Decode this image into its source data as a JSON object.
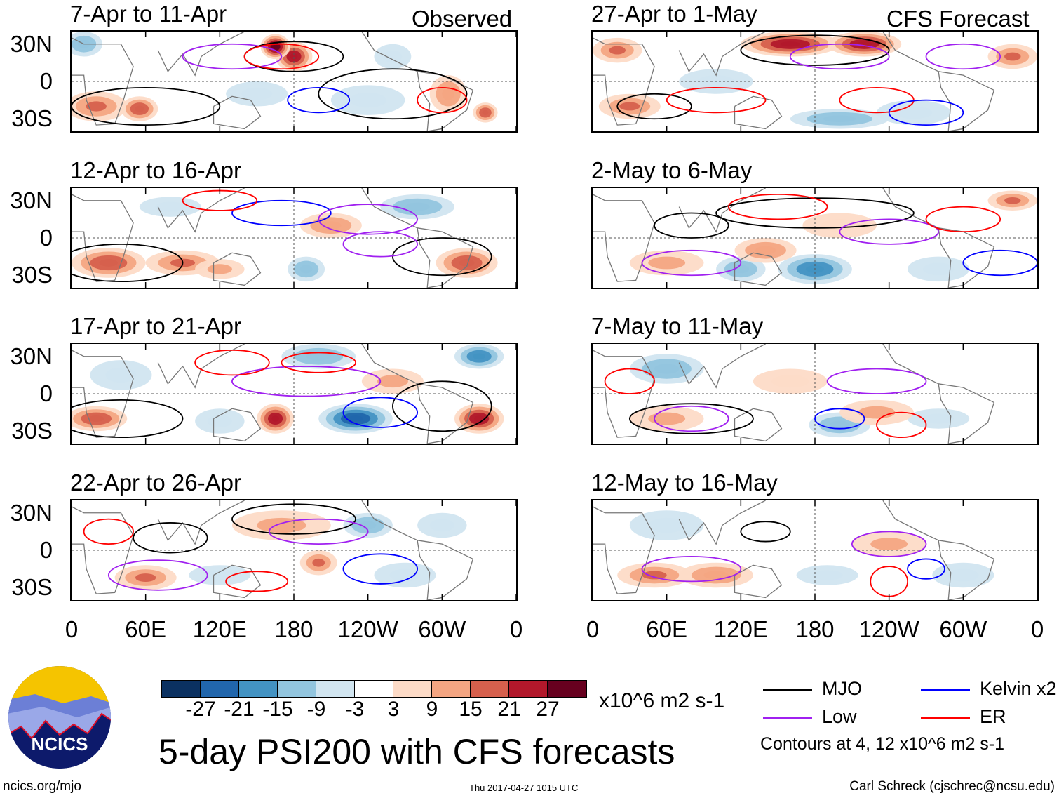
{
  "title": "5-day PSI200 with CFS forecasts",
  "column_labels": {
    "observed": "Observed",
    "forecast": "CFS Forecast"
  },
  "lat_labels": [
    "30N",
    "0",
    "30S"
  ],
  "lon_labels": [
    "0",
    "60E",
    "120E",
    "180",
    "120W",
    "60W",
    "0"
  ],
  "colorbar": {
    "ticks": [
      "-27",
      "-21",
      "-15",
      "-9",
      "-3",
      "3",
      "9",
      "15",
      "21",
      "27"
    ],
    "colors": [
      "#0b3161",
      "#2166ac",
      "#4393c3",
      "#92c5de",
      "#d1e5f0",
      "#ffffff",
      "#fddbc7",
      "#f4a582",
      "#d6604d",
      "#b2182b",
      "#67001f"
    ],
    "units": "x10^6 m2 s-1"
  },
  "legend": {
    "items": [
      {
        "label": "MJO",
        "color": "#000000"
      },
      {
        "label": "Kelvin x2",
        "color": "#0000ff"
      },
      {
        "label": "Low",
        "color": "#a020f0"
      },
      {
        "label": "ER",
        "color": "#ff0000"
      }
    ],
    "contours_note": "Contours at 4, 12 x10^6 m2 s-1"
  },
  "footer": {
    "url": "ncics.org/mjo",
    "timestamp": "Thu 2017-04-27 1015 UTC",
    "author": "Carl Schreck (cjschrec@ncsu.edu)"
  },
  "logo_text": "NCICS",
  "chart_data": {
    "type": "heatmap",
    "variable": "PSI200 anomaly",
    "lon_range": [
      0,
      360
    ],
    "lat_range": [
      -40,
      40
    ],
    "panels": [
      {
        "title": "7-Apr to 11-Apr",
        "kind": "observed",
        "anomalies": [
          [
            180,
            20,
            15,
            12,
            25
          ],
          [
            165,
            28,
            12,
            10,
            30
          ],
          [
            20,
            -20,
            25,
            12,
            15
          ],
          [
            55,
            -22,
            15,
            10,
            18
          ],
          [
            305,
            -10,
            15,
            15,
            12
          ],
          [
            150,
            -10,
            25,
            10,
            -9
          ],
          [
            240,
            -15,
            30,
            12,
            -6
          ],
          [
            260,
            20,
            15,
            10,
            -9
          ],
          [
            10,
            30,
            15,
            10,
            -12
          ],
          [
            335,
            -25,
            10,
            8,
            20
          ]
        ],
        "contours": [
          [
            180,
            20,
            40,
            12,
            "mjo"
          ],
          [
            60,
            -20,
            60,
            15,
            "mjo"
          ],
          [
            260,
            -10,
            60,
            20,
            "mjo"
          ],
          [
            130,
            20,
            40,
            10,
            "low"
          ],
          [
            200,
            -15,
            25,
            10,
            "kelvin"
          ],
          [
            170,
            20,
            30,
            10,
            "er"
          ],
          [
            300,
            -15,
            20,
            10,
            "er"
          ]
        ]
      },
      {
        "title": "12-Apr to 16-Apr",
        "kind": "observed",
        "anomalies": [
          [
            30,
            -20,
            30,
            12,
            20
          ],
          [
            90,
            -20,
            30,
            10,
            15
          ],
          [
            320,
            -20,
            25,
            12,
            20
          ],
          [
            190,
            -25,
            15,
            10,
            -12
          ],
          [
            210,
            10,
            25,
            10,
            12
          ],
          [
            280,
            25,
            30,
            10,
            -12
          ],
          [
            80,
            25,
            25,
            8,
            -6
          ],
          [
            120,
            -25,
            20,
            8,
            9
          ]
        ],
        "contours": [
          [
            40,
            -20,
            50,
            15,
            "mjo"
          ],
          [
            300,
            -15,
            40,
            15,
            "mjo"
          ],
          [
            170,
            20,
            40,
            10,
            "kelvin"
          ],
          [
            120,
            30,
            30,
            8,
            "er"
          ],
          [
            240,
            15,
            40,
            12,
            "low"
          ],
          [
            250,
            -5,
            30,
            10,
            "low"
          ]
        ]
      },
      {
        "title": "17-Apr to 21-Apr",
        "kind": "observed",
        "anomalies": [
          [
            20,
            -20,
            25,
            10,
            18
          ],
          [
            120,
            -22,
            20,
            10,
            -9
          ],
          [
            165,
            -20,
            15,
            12,
            25
          ],
          [
            230,
            -20,
            30,
            12,
            -27
          ],
          [
            330,
            -20,
            20,
            12,
            25
          ],
          [
            200,
            30,
            30,
            10,
            -15
          ],
          [
            330,
            30,
            20,
            10,
            -21
          ],
          [
            40,
            15,
            25,
            12,
            -9
          ],
          [
            260,
            10,
            25,
            10,
            9
          ]
        ],
        "contours": [
          [
            40,
            -20,
            50,
            15,
            "mjo"
          ],
          [
            300,
            -10,
            40,
            20,
            "mjo"
          ],
          [
            190,
            10,
            60,
            12,
            "low"
          ],
          [
            130,
            25,
            30,
            10,
            "er"
          ],
          [
            200,
            25,
            30,
            8,
            "er"
          ],
          [
            250,
            -15,
            30,
            12,
            "kelvin"
          ]
        ]
      },
      {
        "title": "22-Apr to 26-Apr",
        "kind": "observed",
        "anomalies": [
          [
            170,
            20,
            40,
            12,
            9
          ],
          [
            240,
            20,
            20,
            10,
            -12
          ],
          [
            60,
            -22,
            25,
            10,
            15
          ],
          [
            200,
            -10,
            15,
            10,
            15
          ],
          [
            300,
            20,
            20,
            10,
            -9
          ],
          [
            120,
            -20,
            25,
            8,
            -6
          ],
          [
            270,
            -20,
            25,
            10,
            -6
          ]
        ],
        "contours": [
          [
            180,
            25,
            50,
            12,
            "mjo"
          ],
          [
            80,
            10,
            30,
            12,
            "mjo"
          ],
          [
            70,
            -20,
            40,
            12,
            "low"
          ],
          [
            200,
            15,
            40,
            10,
            "low"
          ],
          [
            250,
            -15,
            30,
            12,
            "kelvin"
          ],
          [
            30,
            15,
            20,
            10,
            "er"
          ],
          [
            150,
            -25,
            25,
            8,
            "er"
          ]
        ]
      },
      {
        "title": "27-Apr to 1-May",
        "kind": "forecast",
        "anomalies": [
          [
            160,
            30,
            40,
            10,
            25
          ],
          [
            220,
            30,
            30,
            10,
            25
          ],
          [
            20,
            25,
            20,
            10,
            15
          ],
          [
            340,
            20,
            20,
            10,
            15
          ],
          [
            30,
            -20,
            25,
            10,
            15
          ],
          [
            200,
            -30,
            40,
            8,
            -15
          ],
          [
            260,
            -25,
            30,
            10,
            -9
          ],
          [
            100,
            0,
            30,
            10,
            -6
          ]
        ],
        "contours": [
          [
            180,
            25,
            60,
            12,
            "mjo"
          ],
          [
            50,
            -20,
            30,
            10,
            "mjo"
          ],
          [
            200,
            20,
            40,
            10,
            "low"
          ],
          [
            300,
            20,
            30,
            10,
            "low"
          ],
          [
            230,
            -15,
            30,
            10,
            "er"
          ],
          [
            100,
            -15,
            40,
            10,
            "er"
          ],
          [
            270,
            -25,
            30,
            10,
            "kelvin"
          ]
        ]
      },
      {
        "title": "2-May to 6-May",
        "kind": "forecast",
        "anomalies": [
          [
            180,
            -25,
            30,
            12,
            -21
          ],
          [
            120,
            -25,
            20,
            10,
            -15
          ],
          [
            280,
            -25,
            25,
            10,
            -9
          ],
          [
            140,
            -10,
            25,
            10,
            12
          ],
          [
            340,
            30,
            20,
            8,
            15
          ],
          [
            60,
            -20,
            30,
            10,
            9
          ],
          [
            200,
            10,
            30,
            10,
            6
          ]
        ],
        "contours": [
          [
            180,
            20,
            80,
            12,
            "mjo"
          ],
          [
            80,
            10,
            30,
            10,
            "mjo"
          ],
          [
            240,
            5,
            40,
            10,
            "low"
          ],
          [
            80,
            -20,
            40,
            10,
            "low"
          ],
          [
            150,
            25,
            40,
            10,
            "er"
          ],
          [
            300,
            15,
            30,
            10,
            "er"
          ],
          [
            330,
            -20,
            30,
            10,
            "kelvin"
          ]
        ]
      },
      {
        "title": "7-May to 11-May",
        "kind": "forecast",
        "anomalies": [
          [
            60,
            20,
            30,
            12,
            -15
          ],
          [
            200,
            -25,
            25,
            10,
            -12
          ],
          [
            280,
            -20,
            25,
            8,
            -9
          ],
          [
            60,
            -20,
            30,
            10,
            9
          ],
          [
            230,
            -15,
            30,
            10,
            9
          ],
          [
            160,
            10,
            30,
            10,
            6
          ]
        ],
        "contours": [
          [
            80,
            -20,
            50,
            12,
            "mjo"
          ],
          [
            230,
            10,
            40,
            10,
            "low"
          ],
          [
            80,
            -20,
            30,
            10,
            "low"
          ],
          [
            30,
            10,
            20,
            10,
            "er"
          ],
          [
            250,
            -25,
            20,
            10,
            "er"
          ],
          [
            200,
            -20,
            20,
            8,
            "kelvin"
          ]
        ]
      },
      {
        "title": "12-May to 16-May",
        "kind": "forecast",
        "anomalies": [
          [
            50,
            -20,
            30,
            10,
            15
          ],
          [
            100,
            -20,
            30,
            10,
            12
          ],
          [
            240,
            5,
            30,
            10,
            9
          ],
          [
            60,
            20,
            30,
            12,
            -9
          ],
          [
            190,
            -20,
            25,
            8,
            -9
          ],
          [
            300,
            -20,
            25,
            10,
            -6
          ]
        ],
        "contours": [
          [
            240,
            5,
            30,
            10,
            "low"
          ],
          [
            80,
            -15,
            40,
            10,
            "low"
          ],
          [
            240,
            -25,
            15,
            12,
            "er"
          ],
          [
            140,
            15,
            20,
            8,
            "mjo"
          ],
          [
            270,
            -15,
            15,
            8,
            "kelvin"
          ]
        ]
      }
    ]
  }
}
